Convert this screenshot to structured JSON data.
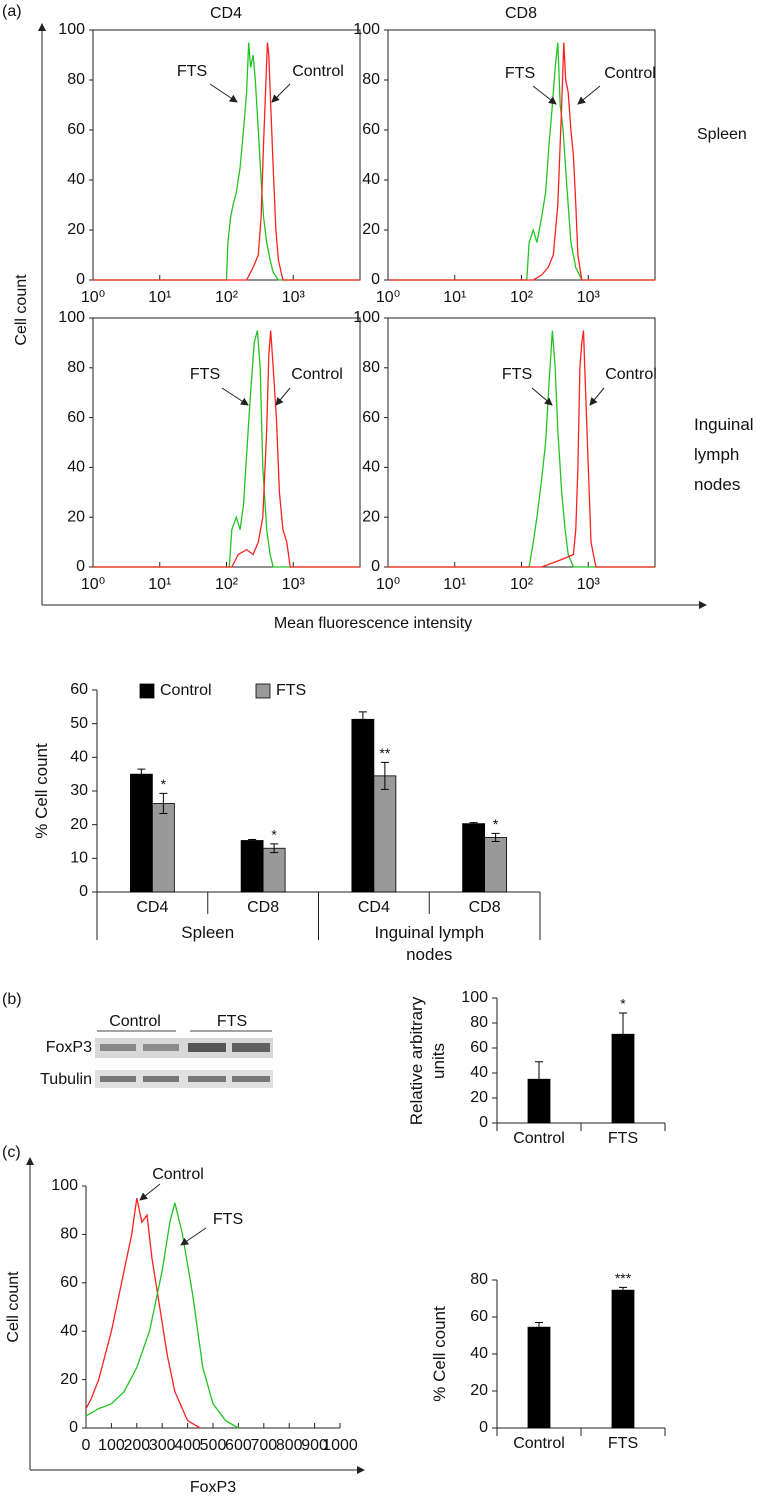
{
  "panel_labels": [
    "(a)",
    "(b)",
    "(c)"
  ],
  "panel_a": {
    "columns": [
      "CD4",
      "CD8"
    ],
    "rows": [
      "Spleen",
      "Inguinal lymph nodes"
    ],
    "y_label": "Cell count",
    "x_label": "Mean fluorescence intensity"
  },
  "blot": {
    "groups": [
      "Control",
      "FTS"
    ],
    "rows": [
      "FoxP3",
      "Tubulin"
    ]
  },
  "chart_data": [
    {
      "type": "line",
      "log_x": true,
      "xlim": [
        1,
        10000
      ],
      "xticks": [
        {
          "value": 1,
          "label": "10⁰"
        },
        {
          "value": 10,
          "label": "10¹"
        },
        {
          "value": 100,
          "label": "10²"
        },
        {
          "value": 1000,
          "label": "10³"
        }
      ],
      "ylim": [
        0,
        100
      ],
      "yticks": [
        0,
        20,
        40,
        60,
        80,
        100
      ],
      "series": [
        {
          "name": "FTS",
          "color": "#22c422",
          "x": [
            1,
            100,
            105,
            115,
            125,
            140,
            160,
            180,
            200,
            215,
            230,
            250,
            270,
            300,
            330,
            360,
            400,
            450,
            500,
            600,
            10000
          ],
          "values": [
            0,
            0,
            15,
            25,
            30,
            35,
            45,
            60,
            75,
            95,
            85,
            90,
            80,
            60,
            40,
            25,
            15,
            8,
            3,
            0,
            0
          ]
        },
        {
          "name": "Control",
          "color": "#ff2020",
          "x": [
            1,
            200,
            250,
            300,
            330,
            360,
            390,
            410,
            430,
            460,
            500,
            550,
            600,
            700,
            10000
          ],
          "values": [
            0,
            0,
            5,
            10,
            25,
            55,
            80,
            95,
            90,
            70,
            45,
            20,
            8,
            0,
            0
          ]
        }
      ]
    },
    {
      "type": "line",
      "log_x": true,
      "xlim": [
        1,
        10000
      ],
      "xticks": [
        {
          "value": 1,
          "label": "10⁰"
        },
        {
          "value": 10,
          "label": "10¹"
        },
        {
          "value": 100,
          "label": "10²"
        },
        {
          "value": 1000,
          "label": "10³"
        }
      ],
      "ylim": [
        0,
        100
      ],
      "yticks": [
        0,
        20,
        40,
        60,
        80,
        100
      ],
      "series": [
        {
          "name": "FTS",
          "color": "#22c422",
          "x": [
            1,
            120,
            130,
            150,
            170,
            200,
            230,
            260,
            290,
            320,
            350,
            380,
            420,
            470,
            550,
            650,
            800,
            10000
          ],
          "values": [
            0,
            0,
            15,
            20,
            15,
            25,
            35,
            55,
            70,
            85,
            95,
            70,
            60,
            40,
            15,
            5,
            0,
            0
          ]
        },
        {
          "name": "Control",
          "color": "#ff2020",
          "x": [
            1,
            150,
            200,
            250,
            300,
            350,
            400,
            430,
            460,
            500,
            550,
            600,
            650,
            700,
            800,
            10000
          ],
          "values": [
            0,
            0,
            2,
            5,
            10,
            30,
            70,
            95,
            80,
            75,
            60,
            50,
            30,
            10,
            0,
            0
          ]
        }
      ]
    },
    {
      "type": "line",
      "log_x": true,
      "xlim": [
        1,
        10000
      ],
      "xticks": [
        {
          "value": 1,
          "label": "10⁰"
        },
        {
          "value": 10,
          "label": "10¹"
        },
        {
          "value": 100,
          "label": "10²"
        },
        {
          "value": 1000,
          "label": "10³"
        }
      ],
      "ylim": [
        0,
        100
      ],
      "yticks": [
        0,
        20,
        40,
        60,
        80,
        100
      ],
      "series": [
        {
          "name": "FTS",
          "color": "#22c422",
          "x": [
            1,
            110,
            120,
            140,
            160,
            180,
            200,
            230,
            260,
            290,
            320,
            350,
            400,
            450,
            500,
            10000
          ],
          "values": [
            0,
            0,
            15,
            20,
            15,
            25,
            45,
            70,
            90,
            95,
            80,
            40,
            15,
            5,
            0,
            0
          ]
        },
        {
          "name": "Control",
          "color": "#ff2020",
          "x": [
            1,
            120,
            150,
            200,
            250,
            300,
            350,
            400,
            430,
            460,
            500,
            560,
            620,
            700,
            800,
            900,
            10000
          ],
          "values": [
            0,
            0,
            5,
            7,
            5,
            10,
            20,
            55,
            85,
            95,
            80,
            60,
            30,
            15,
            10,
            0,
            0
          ]
        }
      ]
    },
    {
      "type": "line",
      "log_x": true,
      "xlim": [
        1,
        10000
      ],
      "xticks": [
        {
          "value": 1,
          "label": "10⁰"
        },
        {
          "value": 10,
          "label": "10¹"
        },
        {
          "value": 100,
          "label": "10²"
        },
        {
          "value": 1000,
          "label": "10³"
        }
      ],
      "ylim": [
        0,
        100
      ],
      "yticks": [
        0,
        20,
        40,
        60,
        80,
        100
      ],
      "series": [
        {
          "name": "FTS",
          "color": "#22c422",
          "x": [
            1,
            130,
            150,
            170,
            200,
            230,
            260,
            290,
            320,
            350,
            400,
            450,
            500,
            600,
            10000
          ],
          "values": [
            0,
            0,
            10,
            20,
            35,
            50,
            75,
            95,
            80,
            55,
            30,
            15,
            5,
            0,
            0
          ]
        },
        {
          "name": "Control",
          "color": "#ff2020",
          "x": [
            1,
            200,
            400,
            600,
            650,
            700,
            750,
            800,
            850,
            900,
            1000,
            1100,
            1300,
            10000
          ],
          "values": [
            0,
            0,
            3,
            5,
            15,
            40,
            80,
            90,
            95,
            75,
            40,
            10,
            0,
            0
          ]
        }
      ]
    },
    {
      "type": "bar",
      "y_label": "% Cell count",
      "ylim": [
        0,
        60
      ],
      "yticks": [
        0,
        10,
        20,
        30,
        40,
        50,
        60
      ],
      "categories": [
        "CD4",
        "CD8",
        "CD4",
        "CD8"
      ],
      "groups": [
        "Spleen",
        "Inguinal lymph nodes"
      ],
      "legend": "upper-left",
      "series": [
        {
          "name": "Control",
          "color": "#000000",
          "values": [
            35,
            15.3,
            51.3,
            20.3
          ],
          "errors": [
            1.5,
            0.3,
            2.2,
            0.3
          ]
        },
        {
          "name": "FTS",
          "color": "#999999",
          "values": [
            26.3,
            13,
            34.5,
            16.2
          ],
          "errors": [
            3,
            1.3,
            4,
            1.2
          ],
          "significance": [
            "*",
            "*",
            "**",
            "*"
          ]
        }
      ]
    },
    {
      "type": "bar",
      "y_label": "Relative arbitrary units",
      "ylim": [
        0,
        100
      ],
      "yticks": [
        0,
        20,
        40,
        60,
        80,
        100
      ],
      "categories": [
        "Control",
        "FTS"
      ],
      "series": [
        {
          "color": "#000000",
          "values": [
            35,
            71
          ],
          "errors": [
            14,
            17
          ],
          "significance": [
            null,
            "*"
          ]
        }
      ]
    },
    {
      "type": "line",
      "x_label": "FoxP3",
      "y_label": "Cell count",
      "xlim": [
        0,
        1000
      ],
      "xticks": [
        0,
        100,
        200,
        300,
        400,
        500,
        600,
        700,
        800,
        900,
        1000
      ],
      "ylim": [
        0,
        100
      ],
      "yticks": [
        0,
        20,
        40,
        60,
        80,
        100
      ],
      "series": [
        {
          "name": "Control",
          "color": "#ff2020",
          "x": [
            0,
            20,
            50,
            100,
            150,
            180,
            200,
            220,
            240,
            260,
            290,
            320,
            350,
            400,
            450
          ],
          "values": [
            8,
            12,
            20,
            40,
            65,
            80,
            95,
            85,
            88,
            70,
            50,
            30,
            15,
            3,
            0
          ]
        },
        {
          "name": "FTS",
          "color": "#22c422",
          "x": [
            0,
            50,
            100,
            150,
            200,
            250,
            300,
            330,
            350,
            380,
            420,
            460,
            500,
            550,
            600
          ],
          "values": [
            5,
            8,
            10,
            15,
            25,
            40,
            65,
            85,
            93,
            80,
            55,
            25,
            10,
            3,
            0
          ]
        }
      ]
    },
    {
      "type": "bar",
      "y_label": "% Cell count",
      "ylim": [
        0,
        80
      ],
      "yticks": [
        0,
        20,
        40,
        60,
        80
      ],
      "categories": [
        "Control",
        "FTS"
      ],
      "series": [
        {
          "color": "#000000",
          "values": [
            54.5,
            74.5
          ],
          "errors": [
            2.5,
            1.5
          ],
          "significance": [
            null,
            "***"
          ]
        }
      ]
    }
  ]
}
